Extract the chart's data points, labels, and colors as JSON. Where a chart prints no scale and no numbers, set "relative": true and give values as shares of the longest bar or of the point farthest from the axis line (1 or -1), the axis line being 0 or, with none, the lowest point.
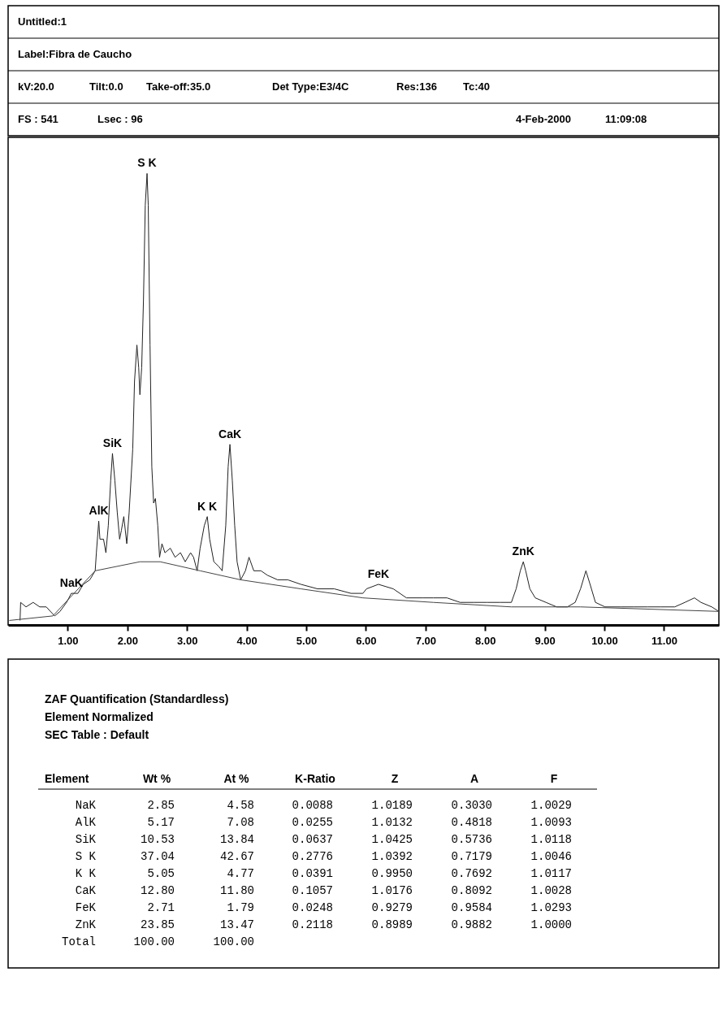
{
  "chart_data": [
    {
      "type": "line",
      "title": "Untitled:1",
      "subtitle": "Label:Fibra de Caucho",
      "annotations": [
        "kV:20.0",
        "Tilt:0.0",
        "Take-off:35.0",
        "Det Type:E3/4C",
        "Res:136",
        "Tc:40",
        "FS : 541",
        "Lsec : 96",
        "4-Feb-2000",
        "11:09:08",
        {
          "text": "NaK",
          "x": 1.06,
          "y": 0.07
        },
        {
          "text": "AlK",
          "x": 1.52,
          "y": 0.23
        },
        {
          "text": "SiK",
          "x": 1.75,
          "y": 0.38
        },
        {
          "text": "S K",
          "x": 2.33,
          "y": 1
        },
        {
          "text": "K K",
          "x": 3.34,
          "y": 0.24
        },
        {
          "text": "CaK",
          "x": 3.72,
          "y": 0.4
        },
        {
          "text": "FeK",
          "x": 6.21,
          "y": 0.09
        },
        {
          "text": "ZnK",
          "x": 8.64,
          "y": 0.14
        }
      ],
      "series": [
        {
          "color": "#222222",
          "x": [
            0.2,
            0.21,
            0.3,
            0.42,
            0.53,
            0.64,
            0.78,
            0.87,
            0.98,
            1.06,
            1.17,
            1.26,
            1.37,
            1.46,
            1.48,
            1.52,
            1.54,
            1.6,
            1.64,
            1.68,
            1.72,
            1.75,
            1.79,
            1.83,
            1.87,
            1.9,
            1.94,
            1.99,
            2.03,
            2.09,
            2.12,
            2.16,
            2.19,
            2.21,
            2.24,
            2.27,
            2.3,
            2.33,
            2.35,
            2.38,
            2.41,
            2.44,
            2.47,
            2.51,
            2.54,
            2.58,
            2.63,
            2.72,
            2.8,
            2.89,
            2.97,
            3.06,
            3.11,
            3.17,
            3.22,
            3.29,
            3.34,
            3.38,
            3.45,
            3.53,
            3.59,
            3.65,
            3.69,
            3.72,
            3.76,
            3.8,
            3.84,
            3.9,
            3.98,
            4.04,
            4.12,
            4.24,
            4.35,
            4.52,
            4.69,
            4.91,
            5.19,
            5.47,
            5.75,
            5.95,
            6.01,
            6.21,
            6.46,
            6.68,
            6.95,
            7.13,
            7.36,
            7.58,
            7.81,
            8.03,
            8.25,
            8.44,
            8.52,
            8.59,
            8.64,
            8.68,
            8.75,
            8.84,
            9.02,
            9.2,
            9.38,
            9.51,
            9.6,
            9.69,
            9.76,
            9.85,
            10.01,
            10.28,
            10.5,
            10.73,
            10.95,
            11.18,
            11.35,
            11.51,
            11.62,
            11.8,
            11.92
          ],
          "values": [
            0.01,
            0.05,
            0.04,
            0.05,
            0.04,
            0.04,
            0.02,
            0.03,
            0.05,
            0.07,
            0.07,
            0.09,
            0.1,
            0.12,
            0.16,
            0.23,
            0.19,
            0.19,
            0.16,
            0.22,
            0.32,
            0.38,
            0.32,
            0.25,
            0.19,
            0.21,
            0.24,
            0.18,
            0.25,
            0.39,
            0.54,
            0.62,
            0.57,
            0.51,
            0.57,
            0.72,
            0.93,
            1,
            0.93,
            0.62,
            0.35,
            0.27,
            0.28,
            0.22,
            0.15,
            0.18,
            0.16,
            0.17,
            0.15,
            0.16,
            0.14,
            0.16,
            0.15,
            0.12,
            0.17,
            0.22,
            0.24,
            0.19,
            0.14,
            0.13,
            0.12,
            0.22,
            0.35,
            0.4,
            0.32,
            0.22,
            0.14,
            0.1,
            0.12,
            0.15,
            0.12,
            0.12,
            0.11,
            0.1,
            0.1,
            0.09,
            0.08,
            0.08,
            0.07,
            0.07,
            0.08,
            0.09,
            0.08,
            0.06,
            0.06,
            0.06,
            0.06,
            0.05,
            0.05,
            0.05,
            0.05,
            0.05,
            0.08,
            0.12,
            0.14,
            0.12,
            0.08,
            0.06,
            0.05,
            0.04,
            0.04,
            0.05,
            0.08,
            0.12,
            0.09,
            0.05,
            0.04,
            0.04,
            0.04,
            0.04,
            0.04,
            0.04,
            0.05,
            0.06,
            0.05,
            0.04,
            0.03
          ]
        },
        {
          "color": "#444444",
          "x": [
            0.02,
            0.75,
            1.46,
            2.21,
            2.55,
            3.22,
            3.9,
            4.91,
            5.95,
            7.13,
            8.44,
            9.6,
            11.92
          ],
          "values": [
            0.01,
            0.02,
            0.12,
            0.14,
            0.14,
            0.12,
            0.1,
            0.08,
            0.06,
            0.05,
            0.04,
            0.04,
            0.03
          ]
        }
      ],
      "xlim": [
        0,
        11.92
      ],
      "xticks": [
        {
          "value": 1,
          "label": "1.00"
        },
        {
          "value": 2,
          "label": "2.00"
        },
        {
          "value": 3,
          "label": "3.00"
        },
        {
          "value": 4,
          "label": "4.00"
        },
        {
          "value": 5,
          "label": "5.00"
        },
        {
          "value": 6,
          "label": "6.00"
        },
        {
          "value": 7,
          "label": "7.00"
        },
        {
          "value": 8,
          "label": "8.00"
        },
        {
          "value": 9,
          "label": "9.00"
        },
        {
          "value": 10,
          "label": "10.00"
        },
        {
          "value": 11,
          "label": "11.00"
        }
      ],
      "relative": true,
      "tick_labels": "x"
    },
    {
      "type": "other",
      "title": "ZAF Quantification (Standardless)",
      "subtitle": "Element Normalized",
      "annotations": [
        "SEC Table : Default"
      ],
      "ylabel": "Element",
      "categories": [
        "Wt %",
        "At %",
        "K-Ratio",
        "Z",
        "A",
        "F"
      ],
      "y_categories": [
        "NaK",
        "AlK",
        "SiK",
        "S K",
        "K K",
        "CaK",
        "FeK",
        "ZnK",
        "Total"
      ],
      "cell_labels": [
        [
          "2.85",
          "4.58",
          "0.0088",
          "1.0189",
          "0.3030",
          "1.0029"
        ],
        [
          "5.17",
          "7.08",
          "0.0255",
          "1.0132",
          "0.4818",
          "1.0093"
        ],
        [
          "10.53",
          "13.84",
          "0.0637",
          "1.0425",
          "0.5736",
          "1.0118"
        ],
        [
          "37.04",
          "42.67",
          "0.2776",
          "1.0392",
          "0.7179",
          "1.0046"
        ],
        [
          "5.05",
          "4.77",
          "0.0391",
          "0.9950",
          "0.7692",
          "1.0117"
        ],
        [
          "12.80",
          "11.80",
          "0.1057",
          "1.0176",
          "0.8092",
          "1.0028"
        ],
        [
          "2.71",
          "1.79",
          "0.0248",
          "0.9279",
          "0.9584",
          "1.0293"
        ],
        [
          "23.85",
          "13.47",
          "0.2118",
          "0.8989",
          "0.9882",
          "1.0000"
        ],
        [
          "100.00",
          "100.00",
          null,
          null,
          null,
          null
        ]
      ]
    }
  ]
}
